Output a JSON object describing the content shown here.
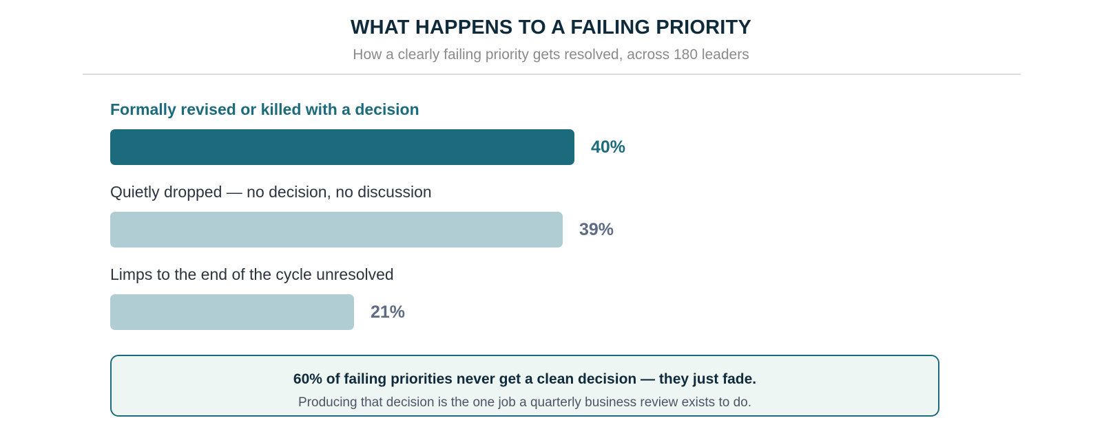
{
  "colors": {
    "highlight": "#1b6b7c",
    "muted": "#afcdd3",
    "title": "#0f2a3a",
    "callout_bg": "#eef6f3"
  },
  "chart_data": {
    "type": "bar",
    "orientation": "horizontal",
    "title": "WHAT HAPPENS TO A FAILING PRIORITY",
    "subtitle": "How a clearly failing priority gets resolved, across 180 leaders",
    "xlabel": "",
    "ylabel": "",
    "xlim": [
      0,
      100
    ],
    "grid": false,
    "unit": "%",
    "categories": [
      "Formally revised or killed with a decision",
      "Quietly dropped — no decision, no discussion",
      "Limps to the end of the cycle unresolved"
    ],
    "values": [
      40,
      39,
      21
    ],
    "value_labels": [
      "40%",
      "39%",
      "21%"
    ],
    "highlighted_index": 0
  },
  "callout": {
    "headline": "60% of failing priorities never get a clean decision — they just fade.",
    "subtext": "Producing that decision is the one job a quarterly business review exists to do."
  }
}
